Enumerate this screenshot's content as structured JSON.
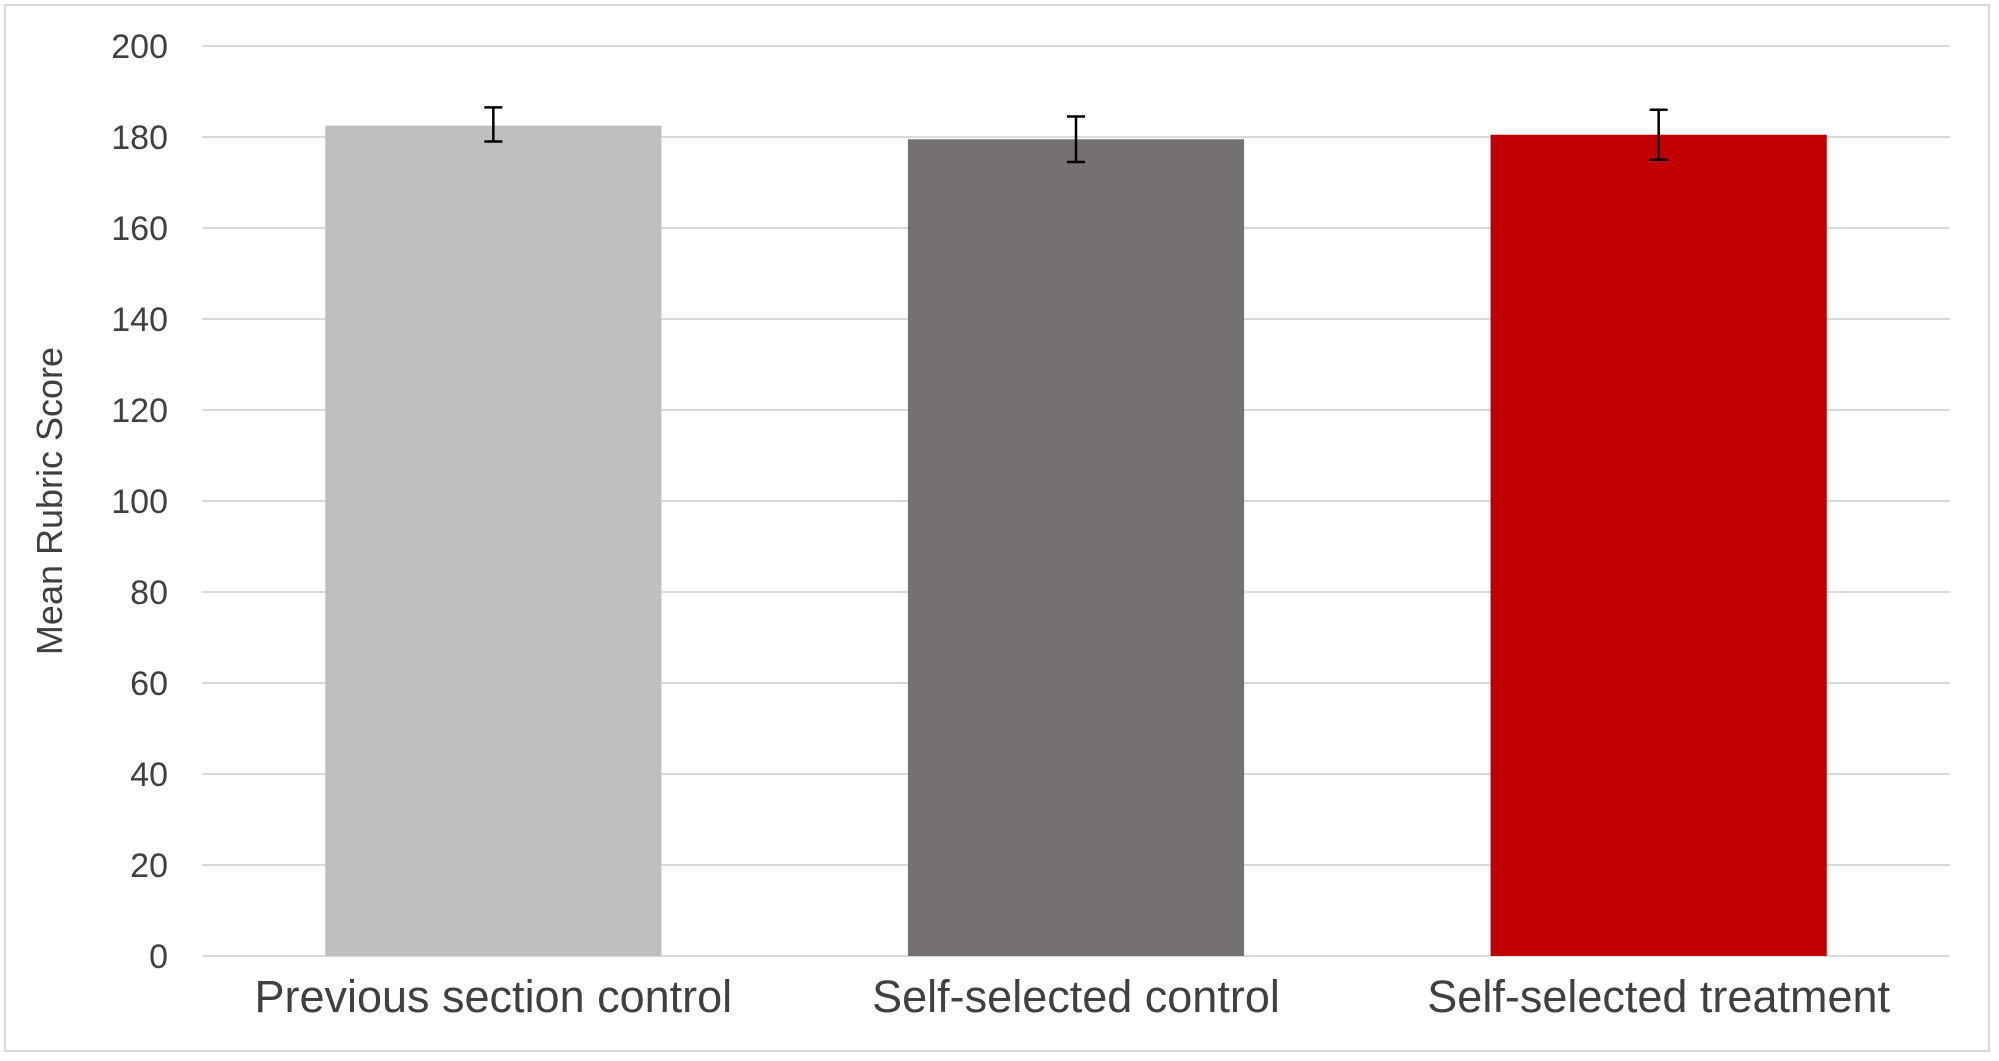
{
  "chart_data": {
    "type": "bar",
    "title": "",
    "xlabel": "",
    "ylabel": "Mean Rubric Score",
    "ylim": [
      0,
      200
    ],
    "ytick_step": 20,
    "yticks": [
      "0",
      "20",
      "40",
      "60",
      "80",
      "100",
      "120",
      "140",
      "160",
      "180",
      "200"
    ],
    "grid": true,
    "legend": "none",
    "categories": [
      "Previous section control",
      "Self-selected control",
      "Self-selected treatment"
    ],
    "values": [
      182.5,
      179.5,
      180.5
    ],
    "error_low": [
      179,
      174.5,
      175
    ],
    "error_high": [
      186.5,
      184.5,
      186
    ],
    "colors": [
      "#bfbfbf",
      "#767171",
      "#c00000"
    ],
    "gridline_color": "#d9d9d9",
    "errorbar_color": "#000000"
  }
}
